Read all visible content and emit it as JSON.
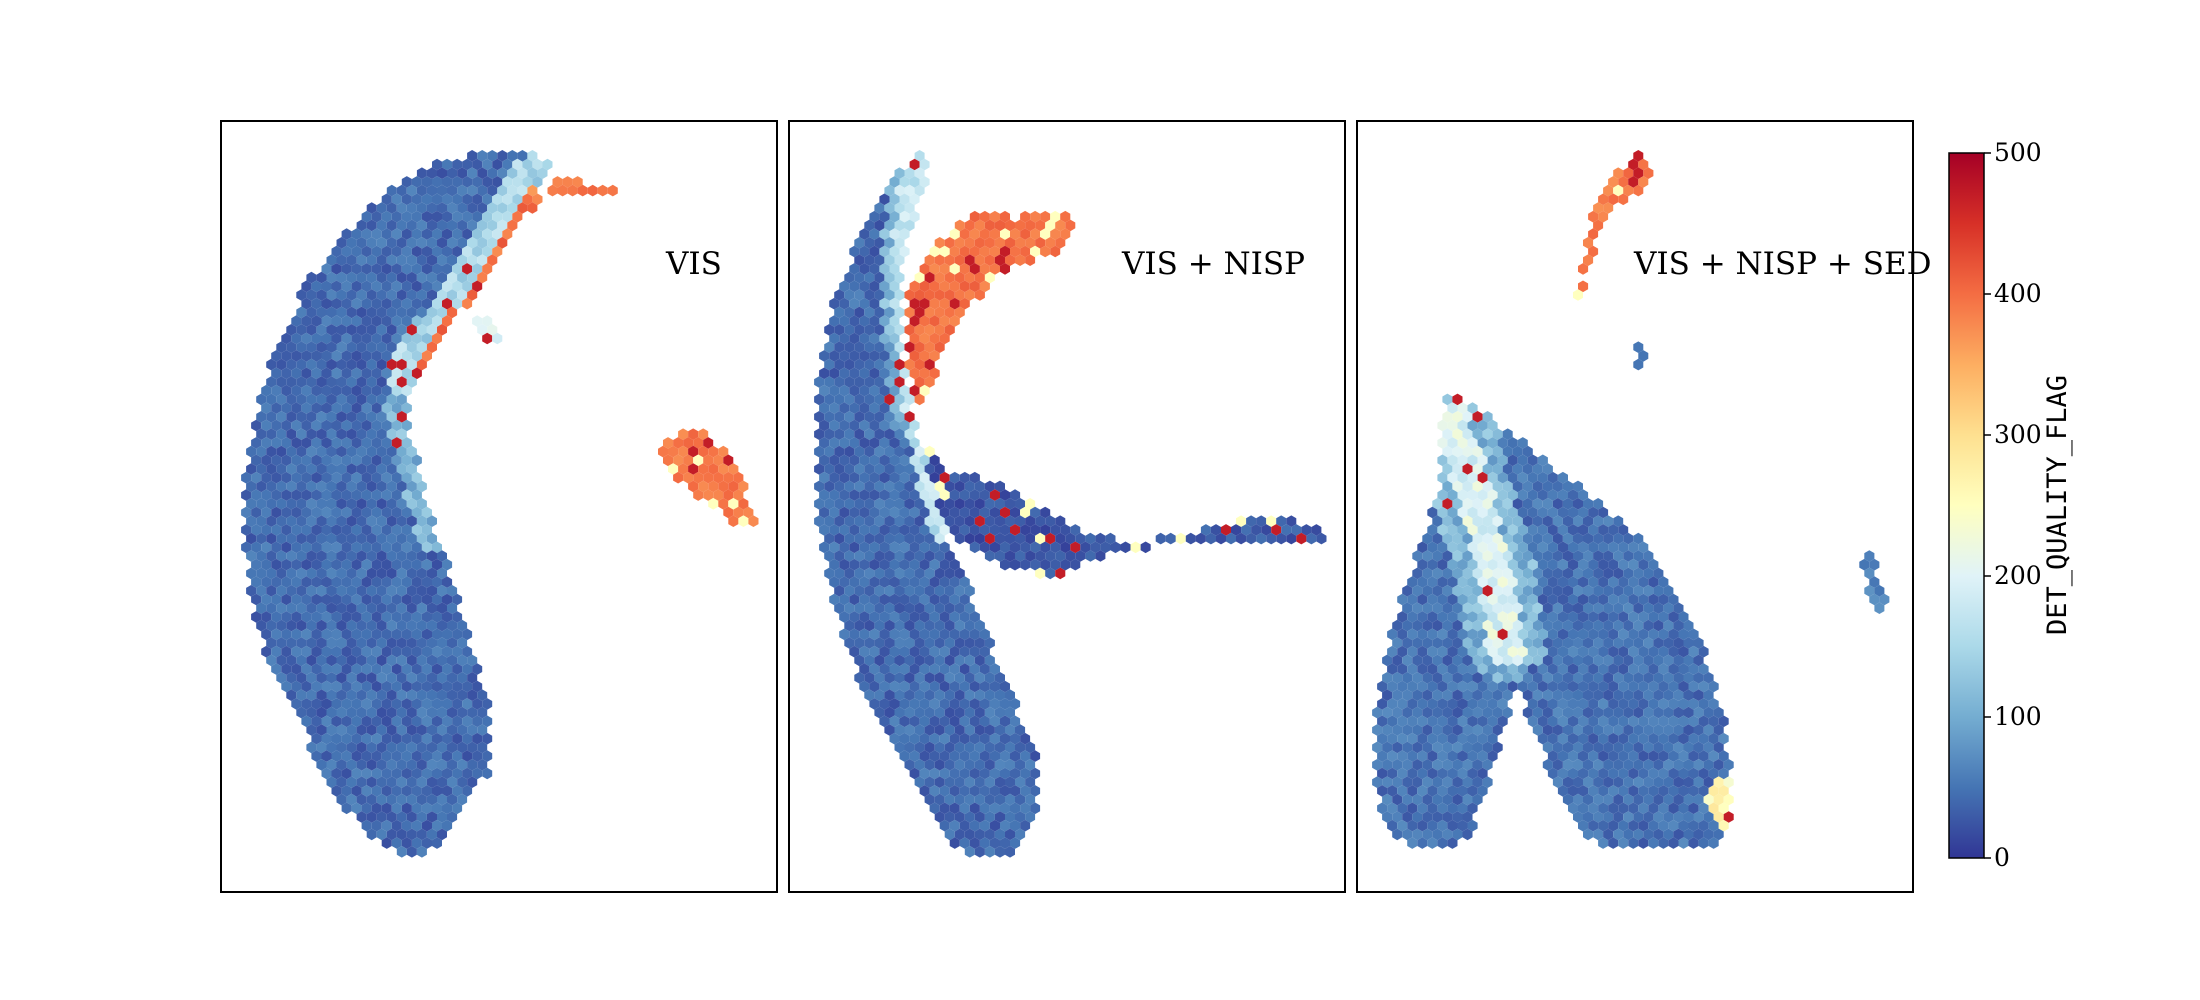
{
  "chart_data": {
    "type": "hexbin",
    "colormap": "RdYlBu_r",
    "colorbar": {
      "label": "DET_QUALITY_FLAG",
      "range": [
        0,
        500
      ],
      "ticks": [
        "0",
        "100",
        "200",
        "300",
        "400",
        "500"
      ]
    },
    "axes_ticks_shown": false,
    "panels": [
      {
        "label": "VIS",
        "regions": [
          {
            "name": "main arc",
            "value": 20
          },
          {
            "name": "inner edge",
            "value": 150
          },
          {
            "name": "upper spur",
            "value": 390
          },
          {
            "name": "detached cluster",
            "value": 390
          }
        ]
      },
      {
        "label": "VIS + NISP",
        "regions": [
          {
            "name": "main arc",
            "value": 20
          },
          {
            "name": "inner edge",
            "value": 150
          },
          {
            "name": "upper arm",
            "value": 395
          },
          {
            "name": "middle arm",
            "value": 25
          },
          {
            "name": "far tail",
            "value": 30
          }
        ]
      },
      {
        "label": "VIS + NISP + SED",
        "regions": [
          {
            "name": "inverted-V body",
            "value": 25
          },
          {
            "name": "apex streak",
            "value": 200
          },
          {
            "name": "top cluster",
            "value": 390
          },
          {
            "name": "small right cluster",
            "value": 60
          }
        ]
      }
    ]
  }
}
